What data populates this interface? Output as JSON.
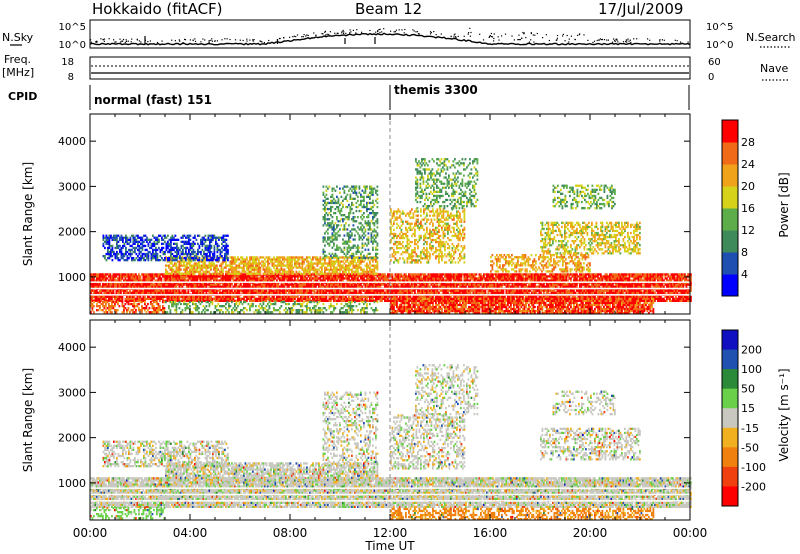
{
  "header": {
    "site": "Hokkaido (fitACF)",
    "beam": "Beam 12",
    "date": "17/Jul/2009"
  },
  "top_panels": {
    "nsky_label": "N.Sky",
    "nsearch_label": "N.Search",
    "noise_ticks": [
      "10^5",
      "10^0"
    ],
    "freq_label": "Freq.",
    "freq_unit": "[MHz]",
    "freq_ticks": [
      "18",
      "8"
    ],
    "nave_label": "Nave",
    "nave_ticks": [
      "60",
      "0"
    ],
    "cpid_label": "CPID",
    "cpid_segments": [
      {
        "name": "normal (fast) 151",
        "start": 0,
        "end": 12
      },
      {
        "name": "themis 3300",
        "start": 12,
        "end": 24
      }
    ]
  },
  "colors": {
    "power_scale": [
      "#0000ff",
      "#1f4fb0",
      "#3f8a5a",
      "#5dae4a",
      "#d6d21a",
      "#f0a21a",
      "#f06a18",
      "#ff0000"
    ],
    "velocity_scale": [
      "#1010c0",
      "#2050b0",
      "#2a8a3a",
      "#6ad04a",
      "#c8c8c0",
      "#f0b020",
      "#f08010",
      "#f04010",
      "#ff0000"
    ],
    "ground_scatter": "#c8c8c0"
  },
  "chart_data": [
    {
      "type": "heatmap",
      "title": "",
      "xlabel": "Time UT",
      "ylabel": "Slant Range [km]",
      "xlim": [
        0,
        24
      ],
      "ylim": [
        180,
        4600
      ],
      "x_ticks": [
        "00:00",
        "04:00",
        "08:00",
        "12:00",
        "16:00",
        "20:00",
        "00:00"
      ],
      "y_ticks": [
        1000,
        2000,
        3000,
        4000
      ],
      "colorbar": {
        "label": "Power [dB]",
        "ticks": [
          4,
          8,
          12,
          16,
          20,
          24,
          28
        ],
        "range": [
          0,
          30
        ]
      },
      "regions": [
        {
          "t0": 0.0,
          "t1": 24.0,
          "r0": 450,
          "r1": 1050,
          "level": 29,
          "density": 0.92
        },
        {
          "t0": 12.0,
          "t1": 22.5,
          "r0": 180,
          "r1": 500,
          "level": 28,
          "density": 0.85
        },
        {
          "t0": 3.0,
          "t1": 11.5,
          "r0": 1050,
          "r1": 1450,
          "level": 21,
          "density": 0.7
        },
        {
          "t0": 0.5,
          "t1": 5.5,
          "r0": 1350,
          "r1": 1900,
          "level": 5,
          "density": 0.55
        },
        {
          "t0": 9.3,
          "t1": 11.5,
          "r0": 1400,
          "r1": 3000,
          "level": 12,
          "density": 0.4
        },
        {
          "t0": 12.0,
          "t1": 15.0,
          "r0": 1300,
          "r1": 2500,
          "level": 20,
          "density": 0.45
        },
        {
          "t0": 13.0,
          "t1": 15.5,
          "r0": 2500,
          "r1": 3600,
          "level": 13,
          "density": 0.35
        },
        {
          "t0": 18.0,
          "t1": 22.0,
          "r0": 1500,
          "r1": 2200,
          "level": 19,
          "density": 0.5
        },
        {
          "t0": 18.5,
          "t1": 21.0,
          "r0": 2500,
          "r1": 3000,
          "level": 14,
          "density": 0.35
        },
        {
          "t0": 16.0,
          "t1": 20.0,
          "r0": 1100,
          "r1": 1500,
          "level": 22,
          "density": 0.5
        },
        {
          "t0": 0.0,
          "t1": 3.0,
          "r0": 200,
          "r1": 450,
          "level": 26,
          "density": 0.5
        },
        {
          "t0": 3.0,
          "t1": 11.5,
          "r0": 200,
          "r1": 450,
          "level": 14,
          "density": 0.35
        }
      ]
    },
    {
      "type": "heatmap",
      "title": "",
      "xlabel": "Time UT",
      "ylabel": "Slant Range [km]",
      "xlim": [
        0,
        24
      ],
      "ylim": [
        180,
        4600
      ],
      "x_ticks": [
        "00:00",
        "04:00",
        "08:00",
        "12:00",
        "16:00",
        "20:00",
        "00:00"
      ],
      "y_ticks": [
        1000,
        2000,
        3000,
        4000
      ],
      "colorbar": {
        "label": "Velocity [m s⁻¹]",
        "ticks": [
          200,
          100,
          50,
          15,
          -15,
          -50,
          -100,
          -200
        ]
      },
      "regions": [
        {
          "t0": 0.0,
          "t1": 24.0,
          "r0": 450,
          "r1": 1100,
          "level": 0,
          "density": 0.9
        },
        {
          "t0": 12.0,
          "t1": 22.5,
          "r0": 180,
          "r1": 450,
          "level": -60,
          "density": 0.5
        },
        {
          "t0": 3.0,
          "t1": 11.5,
          "r0": 1050,
          "r1": 1450,
          "level": 0,
          "density": 0.7
        },
        {
          "t0": 0.5,
          "t1": 5.5,
          "r0": 1350,
          "r1": 1900,
          "level": 0,
          "density": 0.5
        },
        {
          "t0": 9.3,
          "t1": 11.5,
          "r0": 1400,
          "r1": 3000,
          "level": 0,
          "density": 0.35
        },
        {
          "t0": 12.0,
          "t1": 15.0,
          "r0": 1300,
          "r1": 2500,
          "level": 0,
          "density": 0.4
        },
        {
          "t0": 13.0,
          "t1": 15.5,
          "r0": 2500,
          "r1": 3600,
          "level": 0,
          "density": 0.3
        },
        {
          "t0": 18.0,
          "t1": 22.0,
          "r0": 1500,
          "r1": 2200,
          "level": 0,
          "density": 0.45
        },
        {
          "t0": 18.5,
          "t1": 21.0,
          "r0": 2500,
          "r1": 3000,
          "level": 0,
          "density": 0.3
        },
        {
          "t0": 0.0,
          "t1": 3.0,
          "r0": 200,
          "r1": 450,
          "level": 30,
          "density": 0.4
        }
      ]
    }
  ]
}
